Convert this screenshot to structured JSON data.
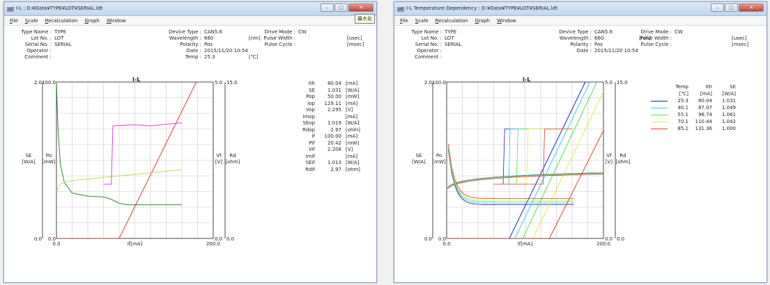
{
  "windows": [
    {
      "title": "I-L : D:¥Data¥TYPE¥LOT¥SERIAL.ldt",
      "tooltip": "最大化",
      "menu": [
        "File",
        "Scale",
        "Recalculation",
        "Graph",
        "Window"
      ],
      "header": {
        "left": [
          [
            "Type Name :",
            "TYPE"
          ],
          [
            "Lot No. :",
            "LOT"
          ],
          [
            "Serial No. :",
            "SERIAL"
          ],
          [
            "Operator :",
            ""
          ],
          [
            "Comment :",
            ""
          ]
        ],
        "mid": [
          [
            "Device Type :",
            "CAN5.6",
            ""
          ],
          [
            "Wavelength :",
            "660",
            "[nm]"
          ],
          [
            "Polarity :",
            "Pos",
            ""
          ],
          [
            "Date :",
            "2015/11/20 10:54",
            ""
          ],
          [
            "Temp :",
            "25.3",
            "[℃]"
          ]
        ],
        "right": [
          [
            "Drive Mode :",
            "CW",
            ""
          ],
          [
            "Pulse Width :",
            "",
            "[usec]"
          ],
          [
            "Pulse Cycle :",
            "",
            "[msec]"
          ]
        ]
      },
      "graph": {
        "title": "I-L",
        "left_axis1": "SE\n[W/A]",
        "left_axis2": "Po\n[mW]",
        "right_axis1": "Vf\n[V]",
        "right_axis2": "Rd\n[ohm]",
        "xlabel": "If[mA]",
        "ticks": {
          "se_top": "2.0",
          "po_top": "100.0",
          "vf_top": "5.0",
          "rd_top": "15.0",
          "se_bot": "0.0",
          "po_bot": "0.0",
          "x_left": "0.0",
          "x_right": "200.0",
          "vf_bot": "0.0",
          "rd_bot": "0.0"
        }
      },
      "results": [
        [
          "Ith",
          "80.04",
          "[mA]"
        ],
        [
          "SE",
          "1.031",
          "[W/A]"
        ],
        [
          "Pop",
          "50.00",
          "[mW]"
        ],
        [
          "Iop",
          "129.11",
          "[mA]"
        ],
        [
          "Vop",
          "2.295",
          "[V]"
        ],
        [
          "Imop",
          "",
          "[mA]"
        ],
        [
          "SEop",
          "1.019",
          "[W/A]"
        ],
        [
          "Rdop",
          "2.97",
          "[ohm]"
        ],
        [
          "If",
          "100.00",
          "[mA]"
        ],
        [
          "Pif",
          "20.42",
          "[mW]"
        ],
        [
          "Vif",
          "2.208",
          "[V]"
        ],
        [
          "Imif",
          "",
          "[mA]"
        ],
        [
          "SEif",
          "1.013",
          "[W/A]"
        ],
        [
          "Rdif",
          "2.97",
          "[ohm]"
        ]
      ]
    },
    {
      "title": "I-L Temperature Dependency : D:¥Data¥TYPE¥LOT¥SERIAL.ldt",
      "menu": [
        "File",
        "Scale",
        "Recalculation",
        "Graph",
        "Window"
      ],
      "header": {
        "left": [
          [
            "Type Name :",
            "TYPE"
          ],
          [
            "Lot No. :",
            "LOT"
          ],
          [
            "Serial No. :",
            "SERIAL"
          ],
          [
            "Operator :",
            ""
          ],
          [
            "Comment :",
            ""
          ]
        ],
        "mid": [
          [
            "Device Type :",
            "CAN5.6",
            ""
          ],
          [
            "Wavelength :",
            "660",
            "[nm]"
          ],
          [
            "Polarity :",
            "Pos",
            ""
          ],
          [
            "Date :",
            "2015/11/20 10:54",
            ""
          ]
        ],
        "right": [
          [
            "Drive Mode :",
            "CW",
            ""
          ],
          [
            "Pulse Width :",
            "",
            "[usec]"
          ],
          [
            "Pulse Cycle :",
            "",
            "[msec]"
          ]
        ]
      },
      "graph": {
        "title": "I-L",
        "left_axis1": "SE\n[W/A]",
        "left_axis2": "Po\n[mW]",
        "right_axis1": "Vf\n[V]",
        "right_axis2": "Rd\n[ohm]",
        "xlabel": "If[mA]",
        "ticks": {
          "se_top": "2.0",
          "po_top": "100.0",
          "vf_top": "5.0",
          "rd_top": "15.0",
          "se_bot": "0.0",
          "po_bot": "0.0",
          "x_left": "0.0",
          "x_right": "200.0",
          "vf_bot": "0.0",
          "rd_bot": "0.0"
        }
      },
      "temp_table": {
        "headers": [
          [
            "Temp",
            "[℃]"
          ],
          [
            "Ith",
            "[mA]"
          ],
          [
            "SE",
            "[W/A]"
          ]
        ],
        "rows": [
          {
            "color": "#1c1cb8",
            "temp": "25.3",
            "ith": "80.04",
            "se": "1.031"
          },
          {
            "color": "#34d0f0",
            "temp": "40.1",
            "ith": "87.07",
            "se": "1.049"
          },
          {
            "color": "#4ee34e",
            "temp": "55.1",
            "ith": "96.74",
            "se": "1.061"
          },
          {
            "color": "#e8e840",
            "temp": "70.1",
            "ith": "110.44",
            "se": "1.042"
          },
          {
            "color": "#e03a2a",
            "temp": "85.1",
            "ith": "131.36",
            "se": "1.000"
          }
        ]
      }
    }
  ],
  "chart_data": [
    {
      "type": "line",
      "title": "I-L",
      "xlabel": "If[mA]",
      "xlim": [
        0,
        200
      ],
      "series": [
        {
          "name": "Po",
          "axis": "Po [mW]",
          "ylim": [
            0,
            100
          ],
          "x": [
            0,
            80,
            200
          ],
          "y": [
            0,
            0,
            122
          ],
          "color": "#e03a2a"
        },
        {
          "name": "SE",
          "axis": "SE [W/A]",
          "ylim": [
            0,
            2
          ],
          "x": [
            0,
            2,
            5,
            10,
            20,
            40,
            60,
            70,
            80,
            90,
            120,
            160
          ],
          "y": [
            2.0,
            1.4,
            0.95,
            0.72,
            0.58,
            0.54,
            0.53,
            0.5,
            0.45,
            0.43,
            0.43,
            0.43
          ],
          "color": "#2e8b2e"
        },
        {
          "name": "Vf",
          "axis": "Vf [V]",
          "ylim": [
            0,
            5
          ],
          "x": [
            0,
            5,
            20,
            60,
            100,
            160
          ],
          "y": [
            1.5,
            1.75,
            1.85,
            1.95,
            2.05,
            2.2
          ],
          "color": "#c9d75a"
        },
        {
          "name": "Rd",
          "axis": "Rd [ohm]",
          "ylim": [
            0,
            15
          ],
          "x": [
            60,
            70,
            72,
            100,
            120,
            160
          ],
          "y": [
            5.2,
            5.2,
            10.8,
            10.9,
            10.8,
            11.1
          ],
          "color": "#e040e0"
        }
      ]
    },
    {
      "type": "line",
      "title": "I-L",
      "xlabel": "If[mA]",
      "xlim": [
        0,
        200
      ],
      "series": [
        {
          "name": "25.3",
          "x": [
            0,
            80,
            200
          ],
          "y": [
            0,
            0,
            124
          ],
          "color": "#1c1cb8"
        },
        {
          "name": "40.1",
          "x": [
            0,
            87,
            200
          ],
          "y": [
            0,
            0,
            118
          ],
          "color": "#34d0f0"
        },
        {
          "name": "55.1",
          "x": [
            0,
            97,
            200
          ],
          "y": [
            0,
            0,
            109
          ],
          "color": "#4ee34e"
        },
        {
          "name": "70.1",
          "x": [
            0,
            110,
            200
          ],
          "y": [
            0,
            0,
            94
          ],
          "color": "#e8e840"
        },
        {
          "name": "85.1",
          "x": [
            0,
            131,
            200
          ],
          "y": [
            0,
            0,
            69
          ],
          "color": "#e03a2a"
        }
      ]
    }
  ]
}
